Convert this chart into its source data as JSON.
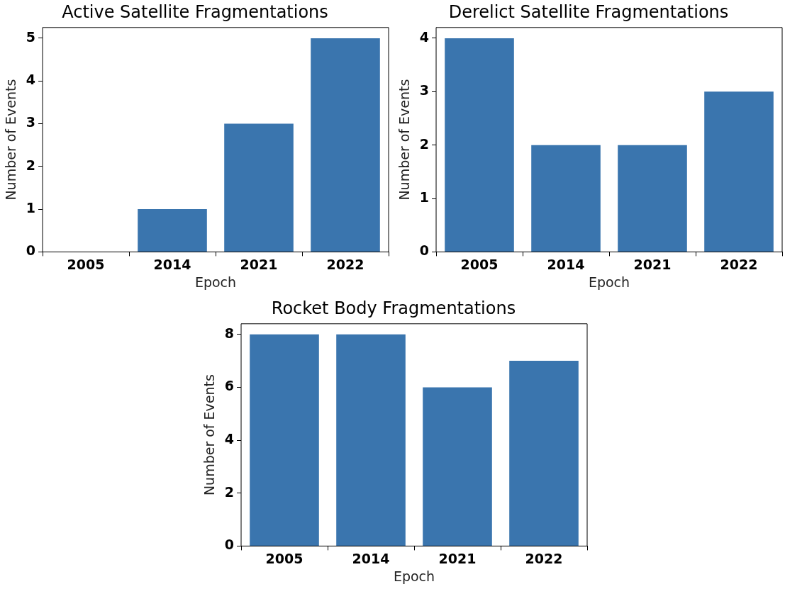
{
  "chart_data": [
    {
      "type": "bar",
      "title": "Active Satellite Fragmentations",
      "xlabel": "Epoch",
      "ylabel": "Number of Events",
      "categories": [
        "2005",
        "2014",
        "2021",
        "2022"
      ],
      "values": [
        0,
        1,
        3,
        5
      ],
      "color": "#3a75ae",
      "ylim": [
        0,
        5.25
      ],
      "yticks": [
        0,
        1,
        2,
        3,
        4,
        5
      ],
      "grid": false,
      "legend": false
    },
    {
      "type": "bar",
      "title": "Derelict Satellite Fragmentations",
      "xlabel": "Epoch",
      "ylabel": "Number of Events",
      "categories": [
        "2005",
        "2014",
        "2021",
        "2022"
      ],
      "values": [
        4,
        2,
        2,
        3
      ],
      "color": "#3a75ae",
      "ylim": [
        0,
        4.2
      ],
      "yticks": [
        0,
        1,
        2,
        3,
        4
      ],
      "grid": false,
      "legend": false
    },
    {
      "type": "bar",
      "title": "Rocket Body Fragmentations",
      "xlabel": "Epoch",
      "ylabel": "Number of Events",
      "categories": [
        "2005",
        "2014",
        "2021",
        "2022"
      ],
      "values": [
        8,
        8,
        6,
        7
      ],
      "color": "#3a75ae",
      "ylim": [
        0,
        8.4
      ],
      "yticks": [
        0,
        2,
        4,
        6,
        8
      ],
      "grid": false,
      "legend": false
    }
  ]
}
